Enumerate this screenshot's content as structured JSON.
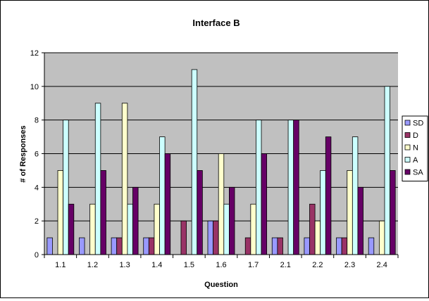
{
  "chart_data": {
    "type": "bar",
    "title": "Interface B",
    "xlabel": "Question",
    "ylabel": "# of Responses",
    "ylim": [
      0,
      12
    ],
    "yticks": [
      0,
      2,
      4,
      6,
      8,
      10,
      12
    ],
    "grid": true,
    "legend_position": "right",
    "plot_background": "#c0c0c0",
    "categories": [
      "1.1",
      "1.2",
      "1.3",
      "1.4",
      "1.5",
      "1.6",
      "1.7",
      "2.1",
      "2.2",
      "2.3",
      "2.4"
    ],
    "series": [
      {
        "name": "SD",
        "color": "#9999ff",
        "values": [
          1,
          1,
          1,
          1,
          0,
          2,
          0,
          1,
          1,
          1,
          1
        ]
      },
      {
        "name": "D",
        "color": "#993366",
        "values": [
          0,
          0,
          1,
          1,
          2,
          2,
          1,
          1,
          3,
          1,
          0
        ]
      },
      {
        "name": "N",
        "color": "#ffffcc",
        "values": [
          5,
          3,
          9,
          3,
          0,
          6,
          3,
          0,
          2,
          5,
          2
        ]
      },
      {
        "name": "A",
        "color": "#ccffff",
        "values": [
          8,
          9,
          3,
          7,
          11,
          3,
          8,
          8,
          5,
          7,
          10
        ]
      },
      {
        "name": "SA",
        "color": "#660066",
        "values": [
          3,
          5,
          4,
          6,
          5,
          4,
          6,
          8,
          7,
          4,
          5
        ]
      }
    ]
  }
}
